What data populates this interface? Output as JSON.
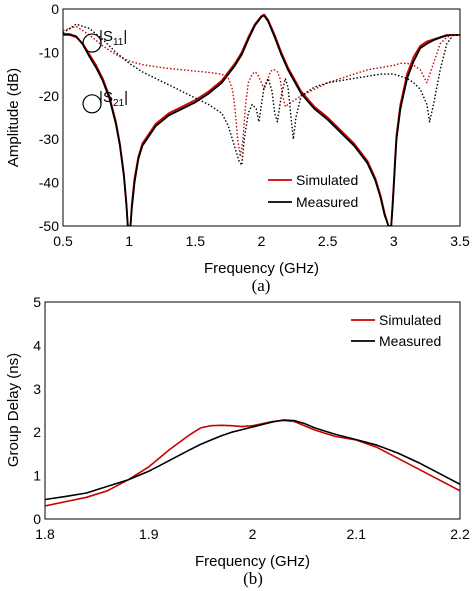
{
  "chart_data": [
    {
      "type": "line",
      "panel_label": "(a)",
      "xlabel": "Frequency (GHz)",
      "ylabel": "Amplitude (dB)",
      "xlim": [
        0.5,
        3.5
      ],
      "ylim": [
        -50,
        0
      ],
      "x_ticks": [
        "0.5",
        "1",
        "1.5",
        "2",
        "2.5",
        "3",
        "3.5"
      ],
      "y_ticks": [
        "0",
        "-10",
        "-20",
        "-30",
        "-40",
        "-50"
      ],
      "grid": false,
      "legend": "bottom-right",
      "annotations": [
        {
          "main": "|S",
          "sub": "11",
          "end": "|",
          "x": 0.78,
          "y": -6
        },
        {
          "main": "|S",
          "sub": "21",
          "end": "|",
          "x": 0.78,
          "y": -20
        }
      ],
      "series": [
        {
          "name": "Simulated",
          "color": "#cc0000",
          "trace": "S21",
          "style": "solid",
          "x": [
            0.5,
            0.55,
            0.6,
            0.65,
            0.7,
            0.75,
            0.8,
            0.85,
            0.9,
            0.93,
            0.96,
            0.98,
            0.99,
            1.0,
            1.01,
            1.02,
            1.04,
            1.07,
            1.1,
            1.2,
            1.3,
            1.4,
            1.5,
            1.6,
            1.7,
            1.8,
            1.85,
            1.9,
            1.95,
            2.0,
            2.02,
            2.05,
            2.1,
            2.15,
            2.2,
            2.3,
            2.4,
            2.5,
            2.6,
            2.7,
            2.8,
            2.86,
            2.9,
            2.93,
            2.96,
            2.98,
            2.99,
            3.0,
            3.01,
            3.02,
            3.05,
            3.1,
            3.15,
            3.2,
            3.25,
            3.3,
            3.35,
            3.4,
            3.45,
            3.5
          ],
          "y": [
            -6,
            -6,
            -6.5,
            -8,
            -10.5,
            -13,
            -16,
            -20,
            -26,
            -31,
            -38,
            -45,
            -50,
            -50,
            -50,
            -45,
            -39,
            -34,
            -31,
            -26.5,
            -24,
            -22.5,
            -21,
            -19,
            -16.5,
            -12.5,
            -10,
            -6.5,
            -3.5,
            -1.6,
            -1.3,
            -2.5,
            -6,
            -10,
            -13.5,
            -19,
            -22.5,
            -25,
            -28,
            -31,
            -35,
            -39,
            -43,
            -47,
            -50,
            -50,
            -45,
            -40,
            -34,
            -29,
            -22,
            -15,
            -11,
            -8.5,
            -7.5,
            -7,
            -6.5,
            -6,
            -6,
            -6
          ]
        },
        {
          "name": "Measured",
          "color": "#000000",
          "trace": "S21",
          "style": "solid",
          "x": [
            0.5,
            0.55,
            0.6,
            0.65,
            0.7,
            0.75,
            0.8,
            0.85,
            0.9,
            0.93,
            0.96,
            0.98,
            0.99,
            1.0,
            1.01,
            1.02,
            1.04,
            1.07,
            1.1,
            1.2,
            1.3,
            1.4,
            1.5,
            1.6,
            1.7,
            1.8,
            1.85,
            1.9,
            1.95,
            2.0,
            2.02,
            2.05,
            2.1,
            2.15,
            2.2,
            2.3,
            2.4,
            2.5,
            2.6,
            2.7,
            2.8,
            2.86,
            2.9,
            2.93,
            2.96,
            2.98,
            2.99,
            3.0,
            3.01,
            3.02,
            3.05,
            3.1,
            3.15,
            3.2,
            3.25,
            3.3,
            3.35,
            3.4,
            3.45,
            3.5
          ],
          "y": [
            -5.8,
            -5.8,
            -6.3,
            -8.2,
            -11,
            -13.5,
            -16.5,
            -20.5,
            -26.5,
            -31.5,
            -38.5,
            -45.5,
            -50,
            -50,
            -50,
            -46,
            -40,
            -34.5,
            -31.5,
            -27,
            -24.5,
            -23,
            -21.5,
            -19.5,
            -17,
            -13,
            -10.5,
            -7,
            -3.8,
            -1.8,
            -1.5,
            -2.8,
            -6.5,
            -10.5,
            -14,
            -19.5,
            -23,
            -25.5,
            -28.5,
            -31.5,
            -35.5,
            -39.5,
            -43.5,
            -47.5,
            -50,
            -50,
            -46,
            -41,
            -35,
            -30,
            -23,
            -16,
            -12,
            -9,
            -8,
            -7.2,
            -6.6,
            -6.1,
            -6,
            -6
          ]
        },
        {
          "name": "Simulated",
          "color": "#cc0000",
          "trace": "S11",
          "style": "dotted",
          "x": [
            0.5,
            0.6,
            0.7,
            0.8,
            0.9,
            1.0,
            1.1,
            1.2,
            1.3,
            1.4,
            1.5,
            1.6,
            1.7,
            1.75,
            1.78,
            1.8,
            1.82,
            1.84,
            1.86,
            1.88,
            1.9,
            1.93,
            1.95,
            1.97,
            2.0,
            2.02,
            2.04,
            2.06,
            2.08,
            2.1,
            2.12,
            2.14,
            2.16,
            2.18,
            2.2,
            2.25,
            2.3,
            2.4,
            2.5,
            2.6,
            2.7,
            2.8,
            2.9,
            3.0,
            3.05,
            3.1,
            3.15,
            3.2,
            3.25,
            3.3,
            3.35,
            3.4,
            3.45,
            3.5
          ],
          "y": [
            -5,
            -4,
            -6,
            -8.5,
            -10.5,
            -12,
            -12.8,
            -13.3,
            -13.7,
            -14,
            -14.3,
            -14.6,
            -15,
            -16,
            -18.5,
            -23,
            -30,
            -34,
            -30,
            -22,
            -17,
            -15,
            -14.5,
            -15,
            -17,
            -18.5,
            -17,
            -15,
            -14,
            -14,
            -14.5,
            -16,
            -20,
            -22.5,
            -22,
            -21,
            -20,
            -18.5,
            -17,
            -16,
            -15,
            -14,
            -13.5,
            -13,
            -12.5,
            -12.5,
            -13,
            -14,
            -17,
            -12.5,
            -8,
            -6.5,
            -6,
            -6
          ]
        },
        {
          "name": "Measured",
          "color": "#000000",
          "trace": "S11",
          "style": "dotted",
          "x": [
            0.5,
            0.6,
            0.7,
            0.8,
            0.9,
            1.0,
            1.1,
            1.2,
            1.3,
            1.4,
            1.5,
            1.6,
            1.7,
            1.75,
            1.8,
            1.83,
            1.85,
            1.87,
            1.9,
            1.93,
            1.96,
            1.98,
            2.0,
            2.02,
            2.05,
            2.08,
            2.1,
            2.12,
            2.15,
            2.18,
            2.2,
            2.22,
            2.24,
            2.26,
            2.3,
            2.4,
            2.5,
            2.6,
            2.7,
            2.8,
            2.9,
            3.0,
            3.05,
            3.1,
            3.15,
            3.2,
            3.25,
            3.27,
            3.3,
            3.35,
            3.4,
            3.45,
            3.5
          ],
          "y": [
            -5.5,
            -3.5,
            -4.5,
            -7,
            -10,
            -12.5,
            -14.5,
            -16,
            -17.5,
            -19,
            -20.5,
            -22,
            -24,
            -27,
            -32,
            -35,
            -36,
            -30,
            -24,
            -22,
            -23,
            -26,
            -22,
            -18,
            -16,
            -19,
            -24,
            -26,
            -20,
            -16,
            -18,
            -24,
            -30,
            -25,
            -20,
            -18,
            -17,
            -16.5,
            -16,
            -15.5,
            -15,
            -15,
            -15.5,
            -16,
            -17,
            -18.5,
            -22,
            -26,
            -22,
            -14,
            -8,
            -6,
            -6
          ]
        }
      ]
    },
    {
      "type": "line",
      "panel_label": "(b)",
      "xlabel": "Frequency (GHz)",
      "ylabel": "Group Delay (ns)",
      "xlim": [
        1.8,
        2.2
      ],
      "ylim": [
        0,
        5
      ],
      "x_ticks": [
        "1.8",
        "1.9",
        "2",
        "2.1",
        "2.2"
      ],
      "y_ticks": [
        "0",
        "1",
        "2",
        "3",
        "4",
        "5"
      ],
      "grid": false,
      "legend": "top-right",
      "series": [
        {
          "name": "Simulated",
          "color": "#cc0000",
          "x": [
            1.8,
            1.82,
            1.84,
            1.86,
            1.88,
            1.9,
            1.92,
            1.94,
            1.95,
            1.96,
            1.97,
            1.98,
            1.99,
            2.0,
            2.01,
            2.02,
            2.03,
            2.04,
            2.05,
            2.06,
            2.08,
            2.1,
            2.12,
            2.14,
            2.16,
            2.18,
            2.2
          ],
          "y": [
            0.3,
            0.4,
            0.5,
            0.65,
            0.9,
            1.2,
            1.6,
            1.95,
            2.1,
            2.15,
            2.16,
            2.15,
            2.13,
            2.15,
            2.2,
            2.25,
            2.27,
            2.25,
            2.15,
            2.05,
            1.9,
            1.82,
            1.65,
            1.4,
            1.15,
            0.9,
            0.65
          ]
        },
        {
          "name": "Measured",
          "color": "#000000",
          "x": [
            1.8,
            1.82,
            1.84,
            1.86,
            1.88,
            1.9,
            1.92,
            1.94,
            1.95,
            1.96,
            1.97,
            1.98,
            1.99,
            2.0,
            2.01,
            2.02,
            2.03,
            2.04,
            2.05,
            2.06,
            2.08,
            2.1,
            2.12,
            2.14,
            2.16,
            2.18,
            2.2
          ],
          "y": [
            0.45,
            0.52,
            0.6,
            0.75,
            0.9,
            1.1,
            1.35,
            1.6,
            1.72,
            1.82,
            1.92,
            2.0,
            2.06,
            2.12,
            2.18,
            2.24,
            2.28,
            2.27,
            2.2,
            2.1,
            1.95,
            1.83,
            1.7,
            1.52,
            1.3,
            1.05,
            0.8
          ]
        }
      ]
    }
  ]
}
